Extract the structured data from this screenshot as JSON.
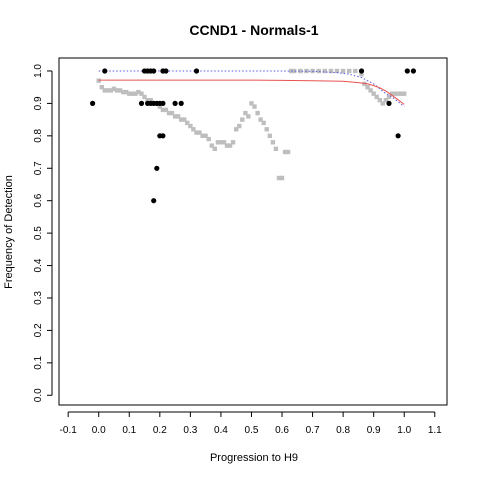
{
  "chart_data": {
    "type": "scatter",
    "title": "CCND1 - Normals-1",
    "xlabel": "Progression to H9",
    "ylabel": "Frequency of Detection",
    "xlim": [
      -0.13,
      1.14
    ],
    "ylim": [
      -0.03,
      1.04
    ],
    "x_ticks": [
      "-0.1",
      "0.0",
      "0.1",
      "0.2",
      "0.3",
      "0.4",
      "0.5",
      "0.6",
      "0.7",
      "0.8",
      "0.9",
      "1.0",
      "1.1"
    ],
    "y_ticks": [
      "0.0",
      "0.1",
      "0.2",
      "0.3",
      "0.4",
      "0.5",
      "0.6",
      "0.7",
      "0.8",
      "0.9",
      "1.0"
    ],
    "grid": false,
    "legend": "none",
    "colors": {
      "observed": "#000000",
      "smoothed_points": "#bebebe",
      "fit_line": "#e8534f",
      "reference_line": "#5a5ae0"
    },
    "series": [
      {
        "role": "observed",
        "style": "points",
        "x": [
          -0.02,
          0.02,
          0.15,
          0.16,
          0.17,
          0.18,
          0.21,
          0.22,
          0.32,
          0.86,
          1.01,
          1.03,
          0.14,
          0.16,
          0.17,
          0.18,
          0.19,
          0.2,
          0.21,
          0.25,
          0.27,
          0.2,
          0.21,
          0.19,
          0.18,
          0.95,
          0.98
        ],
        "y": [
          0.9,
          1.0,
          1.0,
          1.0,
          1.0,
          1.0,
          1.0,
          1.0,
          1.0,
          1.0,
          1.0,
          1.0,
          0.9,
          0.9,
          0.9,
          0.9,
          0.9,
          0.9,
          0.9,
          0.9,
          0.9,
          0.8,
          0.8,
          0.7,
          0.6,
          0.9,
          0.8
        ]
      },
      {
        "role": "smoothed_points",
        "style": "points",
        "x": [
          0.0,
          0.01,
          0.02,
          0.03,
          0.04,
          0.05,
          0.06,
          0.07,
          0.08,
          0.09,
          0.1,
          0.11,
          0.12,
          0.13,
          0.14,
          0.15,
          0.16,
          0.17,
          0.18,
          0.19,
          0.2,
          0.21,
          0.22,
          0.23,
          0.24,
          0.25,
          0.26,
          0.27,
          0.28,
          0.29,
          0.3,
          0.31,
          0.32,
          0.33,
          0.34,
          0.35,
          0.36,
          0.37,
          0.38,
          0.39,
          0.4,
          0.41,
          0.42,
          0.43,
          0.44,
          0.45,
          0.46,
          0.47,
          0.48,
          0.49,
          0.5,
          0.51,
          0.52,
          0.53,
          0.54,
          0.55,
          0.56,
          0.57,
          0.58,
          0.59,
          0.6,
          0.61,
          0.62,
          0.63,
          0.64,
          0.66,
          0.68,
          0.7,
          0.72,
          0.74,
          0.76,
          0.78,
          0.8,
          0.82,
          0.84,
          0.86,
          0.87,
          0.88,
          0.89,
          0.9,
          0.91,
          0.92,
          0.93,
          0.94,
          0.95,
          0.96,
          0.97,
          0.98,
          0.99,
          1.0
        ],
        "y": [
          0.97,
          0.95,
          0.94,
          0.94,
          0.94,
          0.945,
          0.94,
          0.94,
          0.935,
          0.935,
          0.93,
          0.93,
          0.93,
          0.935,
          0.93,
          0.92,
          0.91,
          0.91,
          0.9,
          0.9,
          0.89,
          0.88,
          0.88,
          0.87,
          0.87,
          0.86,
          0.86,
          0.85,
          0.85,
          0.84,
          0.83,
          0.82,
          0.81,
          0.81,
          0.8,
          0.8,
          0.79,
          0.77,
          0.76,
          0.78,
          0.78,
          0.78,
          0.77,
          0.77,
          0.78,
          0.82,
          0.83,
          0.85,
          0.87,
          0.86,
          0.9,
          0.89,
          0.87,
          0.85,
          0.84,
          0.82,
          0.8,
          0.78,
          0.76,
          0.67,
          0.67,
          0.75,
          0.75,
          1.0,
          1.0,
          1.0,
          1.0,
          1.0,
          1.0,
          1.0,
          1.0,
          1.0,
          1.0,
          1.0,
          1.0,
          0.99,
          0.96,
          0.95,
          0.94,
          0.93,
          0.92,
          0.91,
          0.9,
          0.91,
          0.92,
          0.93,
          0.93,
          0.93,
          0.93,
          0.93
        ]
      },
      {
        "role": "fit_line",
        "style": "line",
        "x": [
          0.0,
          0.1,
          0.2,
          0.3,
          0.4,
          0.5,
          0.6,
          0.7,
          0.8,
          0.85,
          0.88,
          0.9,
          0.92,
          0.94,
          0.96,
          0.98,
          1.0
        ],
        "y": [
          0.972,
          0.972,
          0.972,
          0.972,
          0.972,
          0.972,
          0.971,
          0.97,
          0.968,
          0.964,
          0.96,
          0.955,
          0.948,
          0.938,
          0.925,
          0.911,
          0.897
        ]
      },
      {
        "role": "reference_line",
        "style": "dotted",
        "x": [
          0.0,
          0.1,
          0.2,
          0.3,
          0.4,
          0.5,
          0.6,
          0.7,
          0.78,
          0.82,
          0.86,
          0.88,
          0.9,
          0.92,
          0.94,
          0.96,
          0.98,
          1.0
        ],
        "y": [
          1.0,
          1.0,
          1.0,
          1.0,
          1.0,
          1.0,
          1.0,
          0.999,
          0.995,
          0.99,
          0.98,
          0.97,
          0.96,
          0.945,
          0.93,
          0.92,
          0.905,
          0.89
        ]
      }
    ]
  }
}
